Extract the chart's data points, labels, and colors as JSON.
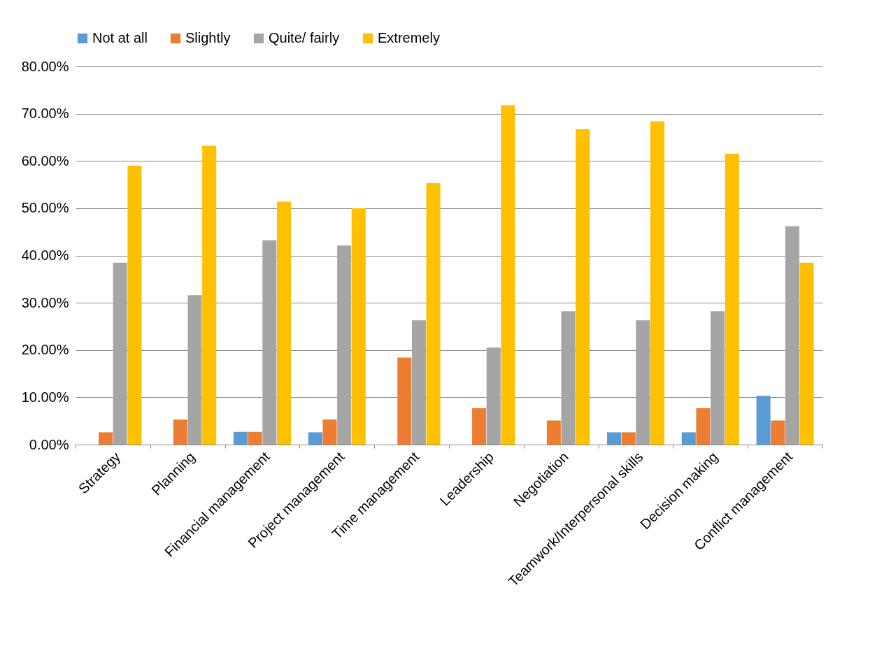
{
  "chart_data": {
    "type": "bar",
    "categories": [
      "Strategy",
      "Planning",
      "Financial management",
      "Project management",
      "Time management",
      "Leadership",
      "Negotiation",
      "Teamwork/Interpersonal skills",
      "Decision making",
      "Conflict management"
    ],
    "series": [
      {
        "name": "Not at all",
        "color": "#5b9bd5",
        "values": [
          null,
          null,
          2.7,
          2.6,
          null,
          null,
          null,
          2.6,
          2.6,
          10.3
        ]
      },
      {
        "name": "Slightly",
        "color": "#ed7d31",
        "values": [
          2.6,
          5.3,
          2.7,
          5.3,
          18.4,
          7.7,
          5.1,
          2.6,
          7.7,
          5.1
        ]
      },
      {
        "name": "Quite/ fairly",
        "color": "#a5a5a5",
        "values": [
          38.5,
          31.6,
          43.2,
          42.1,
          26.3,
          20.5,
          28.2,
          26.3,
          28.2,
          46.2
        ]
      },
      {
        "name": "Extremely",
        "color": "#ffc000",
        "values": [
          59.0,
          63.2,
          51.4,
          50.0,
          55.3,
          71.8,
          66.7,
          68.4,
          61.5,
          38.5
        ]
      }
    ],
    "ylim": [
      0,
      80
    ],
    "yticks": [
      {
        "value": 0,
        "label": "0.00%"
      },
      {
        "value": 10,
        "label": "10.00%"
      },
      {
        "value": 20,
        "label": "20.00%"
      },
      {
        "value": 30,
        "label": "30.00%"
      },
      {
        "value": 40,
        "label": "40.00%"
      },
      {
        "value": 50,
        "label": "50.00%"
      },
      {
        "value": 60,
        "label": "60.00%"
      },
      {
        "value": 70,
        "label": "70.00%"
      },
      {
        "value": 80,
        "label": "80.00%"
      }
    ],
    "grid": "y",
    "legend": "top"
  }
}
